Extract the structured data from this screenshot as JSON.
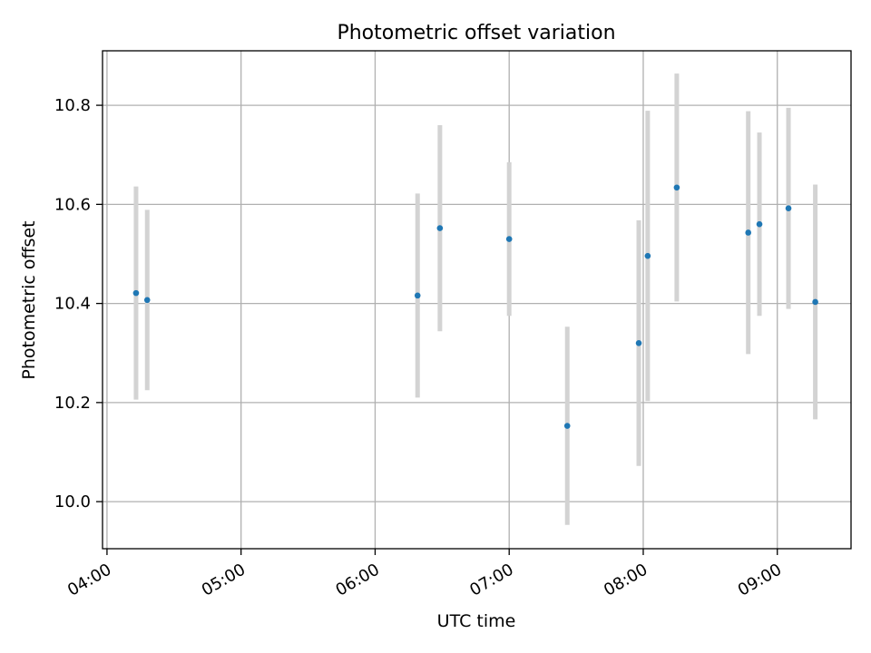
{
  "chart_data": {
    "type": "scatter",
    "title": "Photometric offset variation",
    "xlabel": "UTC time",
    "ylabel": "Photometric offset",
    "x_tick_labels": [
      "04:00",
      "05:00",
      "06:00",
      "07:00",
      "08:00",
      "09:00"
    ],
    "x_ticks": [
      "04:00",
      "05:00",
      "06:00",
      "07:00",
      "08:00",
      "09:00"
    ],
    "y_ticks": [
      10.0,
      10.2,
      10.4,
      10.6,
      10.8
    ],
    "y_tick_labels": [
      "10.0",
      "10.2",
      "10.4",
      "10.6",
      "10.8"
    ],
    "xlim": [
      "03:58",
      "09:33"
    ],
    "ylim": [
      9.905,
      10.91
    ],
    "grid": true,
    "marker_color": "#1f77b4",
    "errorbar_color": "#d3d3d3",
    "points": [
      {
        "x": "04:13",
        "y": 10.421,
        "err": 0.215
      },
      {
        "x": "04:18",
        "y": 10.407,
        "err": 0.182
      },
      {
        "x": "06:19",
        "y": 10.416,
        "err": 0.206
      },
      {
        "x": "06:29",
        "y": 10.552,
        "err": 0.208
      },
      {
        "x": "07:00",
        "y": 10.53,
        "err": 0.155
      },
      {
        "x": "07:26",
        "y": 10.153,
        "err": 0.2
      },
      {
        "x": "07:58",
        "y": 10.32,
        "err": 0.248
      },
      {
        "x": "08:02",
        "y": 10.496,
        "err": 0.293
      },
      {
        "x": "08:15",
        "y": 10.634,
        "err": 0.23
      },
      {
        "x": "08:47",
        "y": 10.543,
        "err": 0.245
      },
      {
        "x": "08:52",
        "y": 10.56,
        "err": 0.185
      },
      {
        "x": "09:05",
        "y": 10.592,
        "err": 0.203
      },
      {
        "x": "09:17",
        "y": 10.403,
        "err": 0.237
      }
    ]
  }
}
